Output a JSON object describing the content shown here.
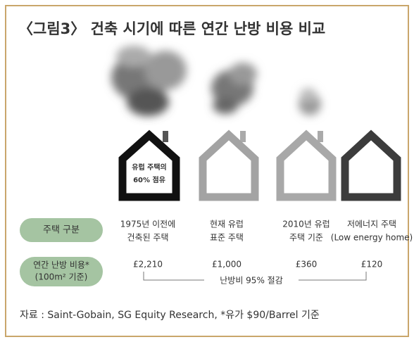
{
  "title": "〈그림3〉 건축 시기에 따른 연간 난방 비용 비교",
  "house_label": [
    "유럽 주택의",
    "60% 점유"
  ],
  "row_headers": [
    [
      "주택 구분"
    ],
    [
      "연간 난방 비용*",
      "(100m² 기준)"
    ]
  ],
  "columns": [
    {
      "type": [
        "1975년 이전에",
        "건축된 주택"
      ],
      "cost": "£2,210"
    },
    {
      "type": [
        "현재 유럽",
        "표준 주택"
      ],
      "cost": "£1,000"
    },
    {
      "type": [
        "2010년 유럽",
        "주택 기준"
      ],
      "cost": "£360"
    },
    {
      "type": [
        "저에너지 주택",
        "(Low energy home)"
      ],
      "cost": "£120"
    }
  ],
  "savings_note": "난방비 95% 절감",
  "source": "자료 : Saint-Gobain, SG Equity Research, *유가 $90/Barrel 기준"
}
